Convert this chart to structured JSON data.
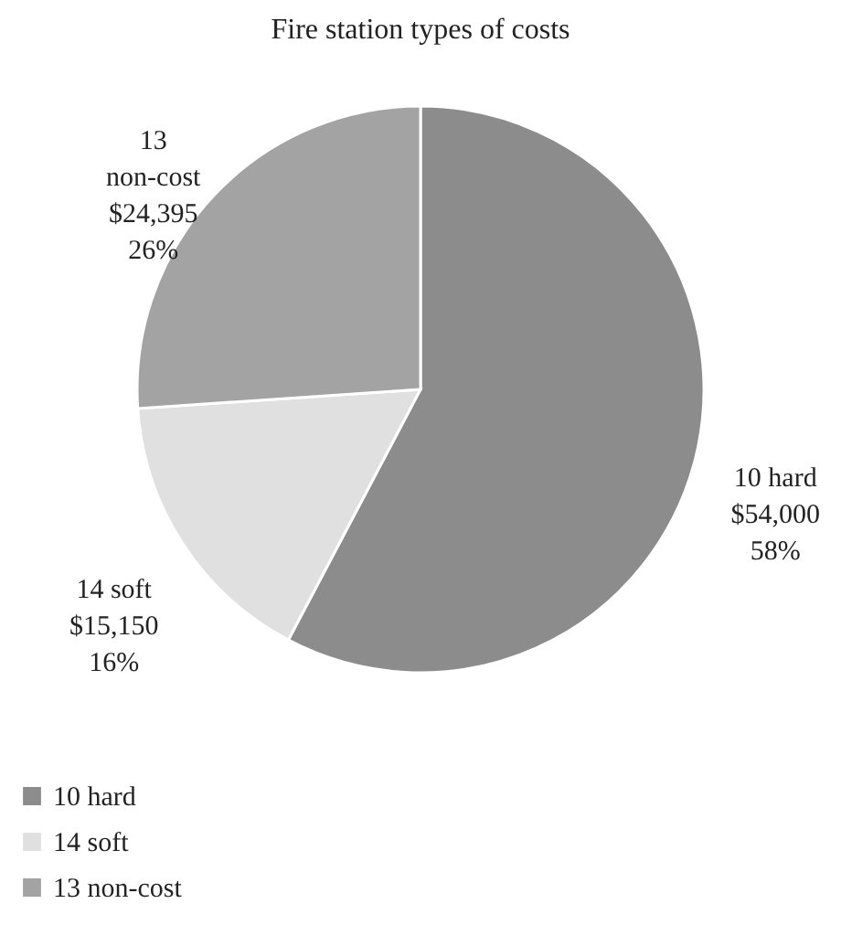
{
  "chart_data": {
    "type": "pie",
    "title": "Fire station types of costs",
    "categories": [
      "10 hard",
      "14 soft",
      "13 non-cost"
    ],
    "values": [
      54000,
      15150,
      24395
    ],
    "colors": [
      "#8c8c8c",
      "#e0e0e0",
      "#a3a3a3"
    ],
    "value_labels": [
      "$54,000\n58%",
      "$15,150\n16%",
      "$24,395\n26%"
    ],
    "legend": "bottom"
  }
}
